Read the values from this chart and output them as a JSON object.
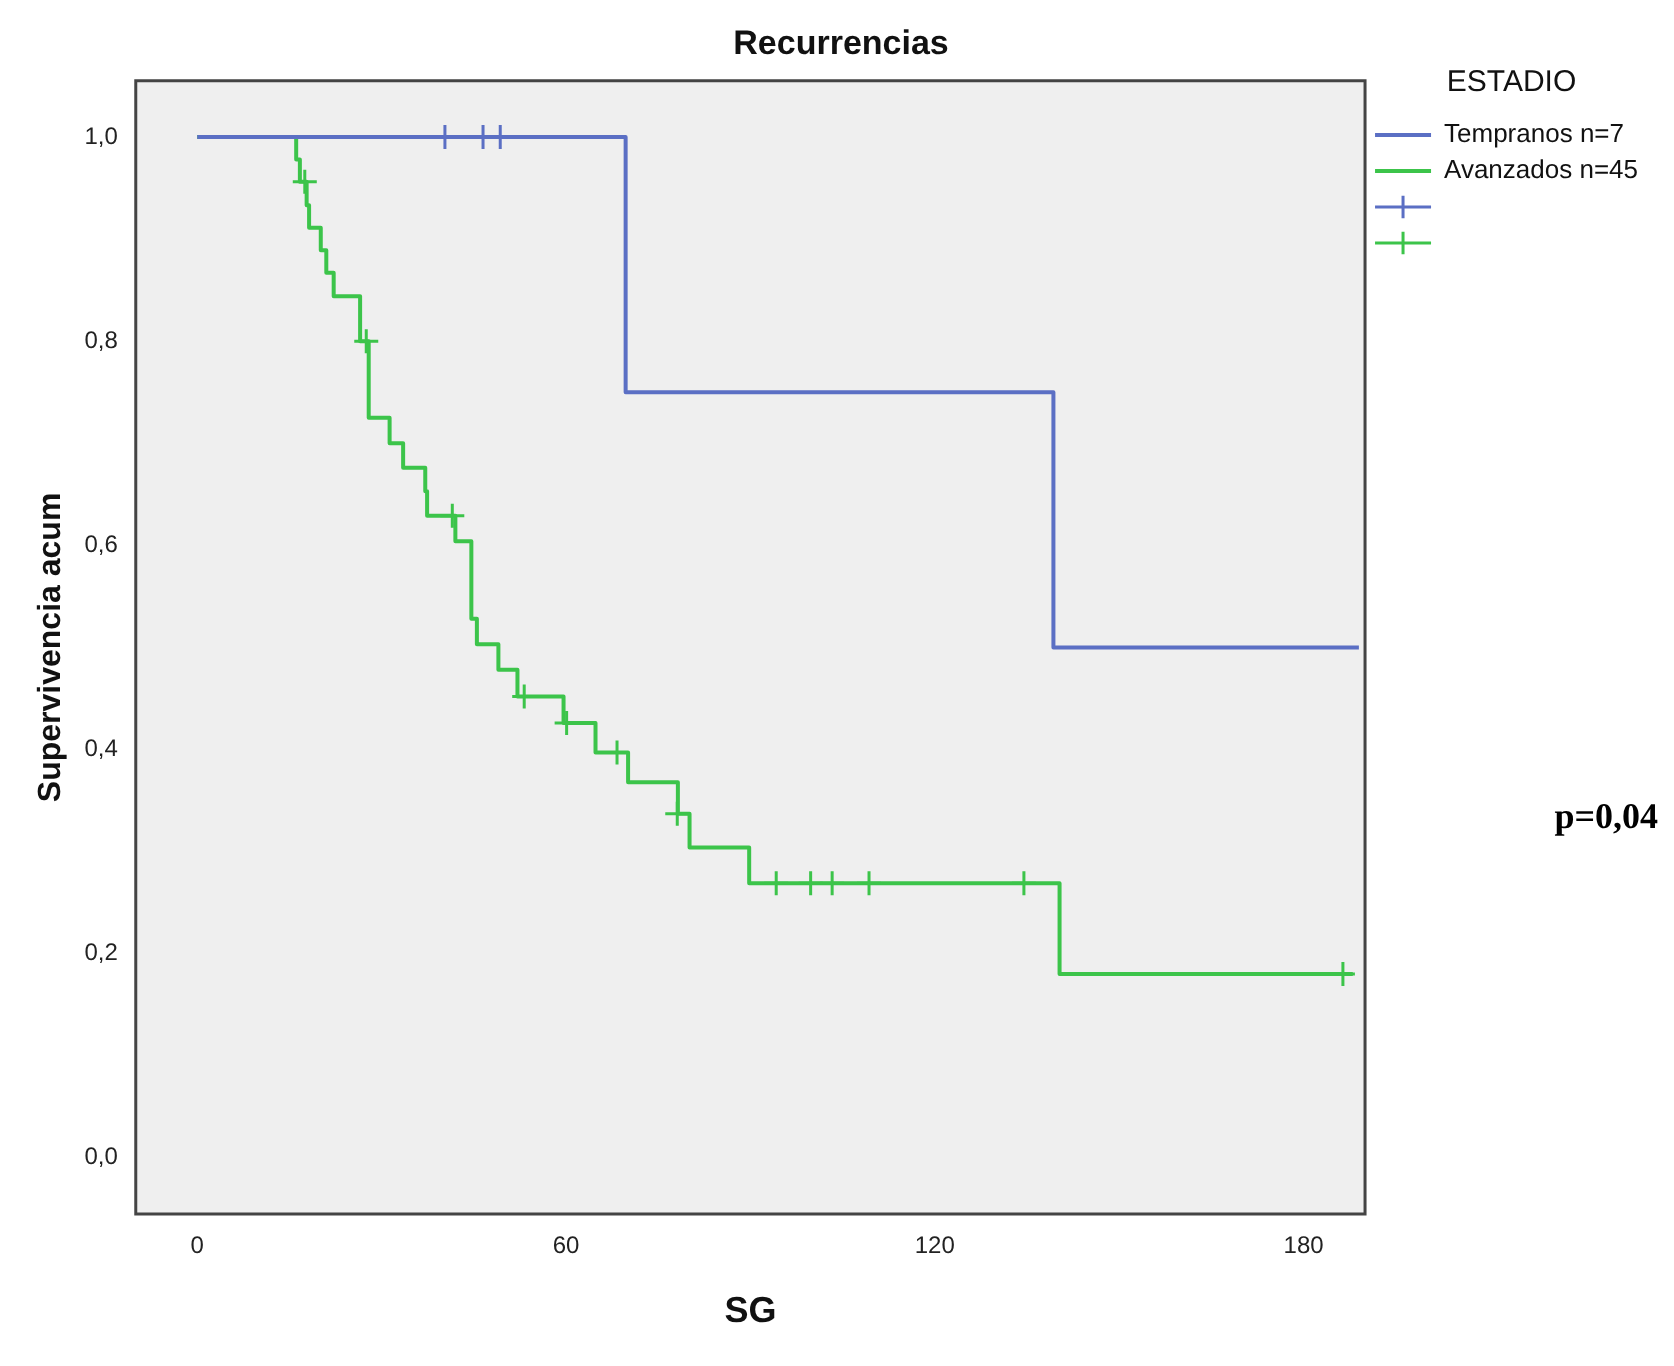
{
  "chart_data": {
    "type": "step",
    "title": "Recurrencias",
    "xlabel": "SG",
    "ylabel": "Supervivencia acum",
    "legend_title": "ESTADIO",
    "legend": "top right",
    "grid": false,
    "xlim": [
      -10,
      190
    ],
    "xticks": [
      0,
      60,
      120,
      180
    ],
    "ylim": [
      -0.055,
      1.055
    ],
    "yticks": [
      {
        "value": 0,
        "label": "0,0"
      },
      {
        "value": 0.2,
        "label": "0,2"
      },
      {
        "value": 0.4,
        "label": "0,4"
      },
      {
        "value": 0.6,
        "label": "0,6"
      },
      {
        "value": 0.8,
        "label": "0,8"
      },
      {
        "value": 1,
        "label": "1,0"
      }
    ],
    "series": [
      {
        "name": "Tempranos n=7",
        "color": "#5b6fc4",
        "x": [
          0,
          69.7,
          139.3,
          189
        ],
        "values": [
          1,
          0.75,
          0.5,
          0.5
        ]
      },
      {
        "name": "Avanzados n=45",
        "color": "#3cc44a",
        "x": [
          0,
          16.1,
          16.7,
          17.8,
          18.2,
          20.1,
          21.0,
          22.2,
          26.5,
          27.9,
          31.3,
          33.5,
          37.1,
          37.4,
          42.0,
          44.6,
          45.5,
          49.0,
          52.1,
          59.6,
          64.8,
          70.1,
          78.2,
          80.1,
          89.8,
          140.3,
          188
        ],
        "values": [
          1,
          0.978,
          0.956,
          0.933,
          0.911,
          0.889,
          0.867,
          0.844,
          0.8,
          0.725,
          0.7,
          0.676,
          0.653,
          0.629,
          0.604,
          0.528,
          0.503,
          0.478,
          0.452,
          0.426,
          0.397,
          0.368,
          0.337,
          0.304,
          0.269,
          0.18,
          0.18
        ]
      },
      {
        "type": "scatter",
        "marker": "cross",
        "color": "#5b6fc4",
        "x": [
          40.3,
          46.5,
          49.3
        ],
        "values": [
          1,
          1,
          1
        ]
      },
      {
        "type": "scatter",
        "marker": "cross",
        "color": "#3cc44a",
        "x": [
          17.5,
          27.5,
          41.5,
          53.2,
          60.1,
          68.3,
          78.1,
          94.2,
          99.8,
          103.3,
          109.3,
          134.5,
          186.4
        ],
        "values": [
          0.956,
          0.8,
          0.629,
          0.452,
          0.426,
          0.397,
          0.337,
          0.269,
          0.269,
          0.269,
          0.269,
          0.269,
          0.18
        ]
      }
    ],
    "annotations": [
      "p=0,04"
    ]
  }
}
